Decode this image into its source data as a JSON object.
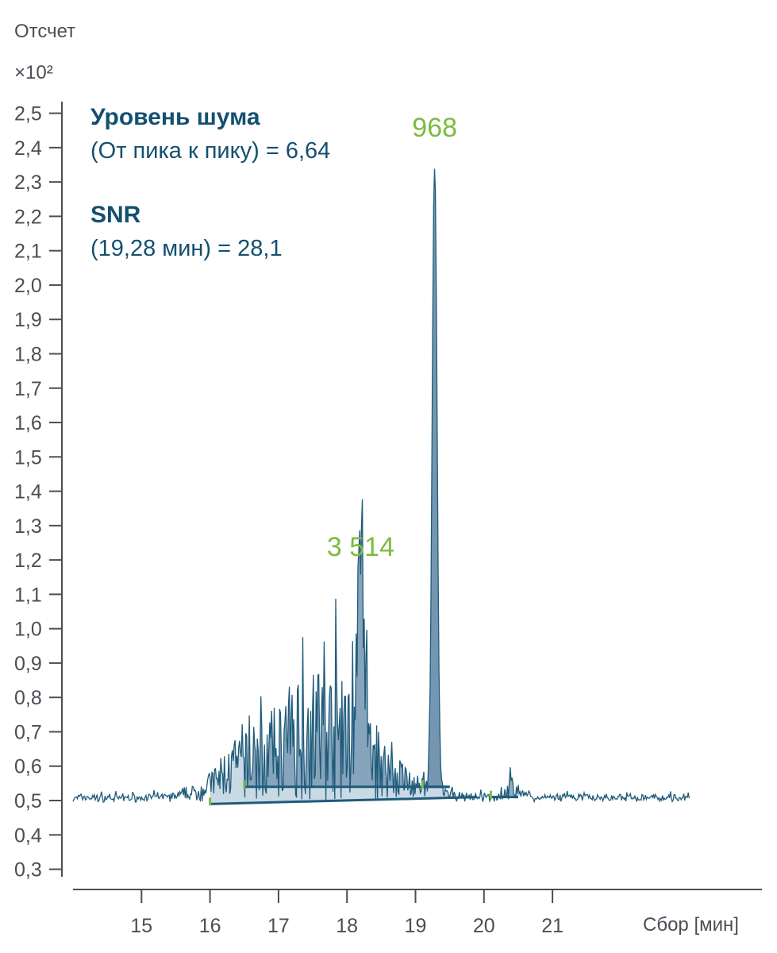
{
  "colors": {
    "axis": "#4a4f55",
    "trace": "#1f5b7a",
    "text_dark": "#14506f",
    "peak_label": "#7dbb3f",
    "fill_light": "#c4d6e2",
    "fill_dark": "#6f92ad"
  },
  "chart_data": {
    "type": "line",
    "ylabel": "Отсчет",
    "ylabel_multiplier": "×10²",
    "xlabel": "Сбор [мин]",
    "xlim": [
      14.0,
      24.0
    ],
    "ylim": [
      0.25,
      2.5
    ],
    "x_ticks": [
      "15",
      "16",
      "17",
      "18",
      "19",
      "20",
      "21"
    ],
    "y_ticks": [
      "2,5",
      "2,4",
      "2,3",
      "2,2",
      "2,1",
      "2,0",
      "1,9",
      "1,8",
      "1,7",
      "1,6",
      "1,5",
      "1,4",
      "1,3",
      "1,2",
      "1,1",
      "1,0",
      "0,9",
      "0,8",
      "0,7",
      "0,6",
      "0,5",
      "0,4",
      "0,3"
    ],
    "annotations": {
      "noise_title": "Уровень шума",
      "noise_value": "(От пика к пику) = 6,64",
      "snr_title": "SNR",
      "snr_value": "(19,28 мин) = 28,1"
    },
    "peaks": [
      {
        "label": "3 514",
        "x": 18.2,
        "y": 1.18
      },
      {
        "label": "968",
        "x": 19.28,
        "y": 2.4
      }
    ],
    "integration_regions": [
      {
        "start": 16.0,
        "end": 19.9,
        "baseline_start": 0.49,
        "baseline_end": 0.51
      },
      {
        "start": 16.5,
        "end": 19.5,
        "baseline_start": 0.54,
        "baseline_end": 0.54
      },
      {
        "start": 19.1,
        "end": 19.5,
        "baseline_start": 0.54,
        "baseline_end": 0.54
      },
      {
        "start": 20.1,
        "end": 20.5,
        "baseline_start": 0.51,
        "baseline_end": 0.51
      }
    ]
  }
}
